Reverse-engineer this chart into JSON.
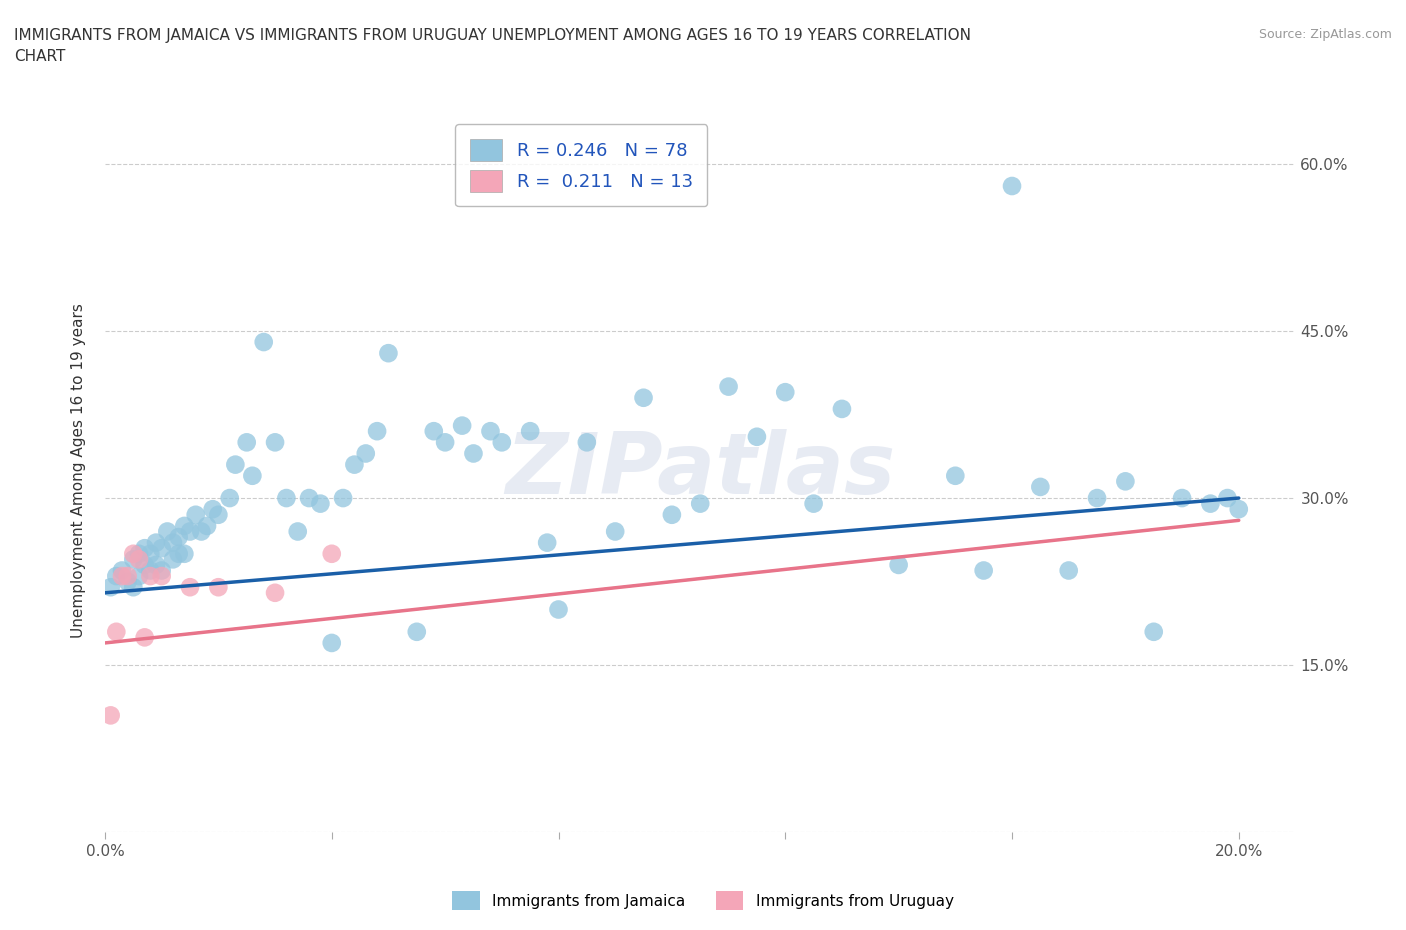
{
  "title": "IMMIGRANTS FROM JAMAICA VS IMMIGRANTS FROM URUGUAY UNEMPLOYMENT AMONG AGES 16 TO 19 YEARS CORRELATION\nCHART",
  "source_text": "Source: ZipAtlas.com",
  "ylabel": "Unemployment Among Ages 16 to 19 years",
  "xlim": [
    0.0,
    0.21
  ],
  "ylim": [
    0.0,
    0.65
  ],
  "xtick_positions": [
    0.0,
    0.04,
    0.08,
    0.12,
    0.16,
    0.2
  ],
  "xtick_labels": [
    "0.0%",
    "",
    "",
    "",
    "",
    "20.0%"
  ],
  "ytick_positions": [
    0.0,
    0.15,
    0.3,
    0.45,
    0.6
  ],
  "ytick_labels": [
    "",
    "15.0%",
    "30.0%",
    "45.0%",
    "60.0%"
  ],
  "jamaica_color": "#92c5de",
  "uruguay_color": "#f4a6b8",
  "jamaica_line_color": "#1a5fa8",
  "uruguay_line_color": "#e8748a",
  "legend_jamaica": "R = 0.246   N = 78",
  "legend_uruguay": "R =  0.211   N = 13",
  "watermark": "ZIPatlas",
  "background_color": "#ffffff",
  "grid_color": "#cccccc",
  "jamaica_x": [
    0.001,
    0.002,
    0.003,
    0.004,
    0.005,
    0.005,
    0.006,
    0.006,
    0.007,
    0.007,
    0.008,
    0.008,
    0.009,
    0.009,
    0.01,
    0.01,
    0.011,
    0.012,
    0.012,
    0.013,
    0.013,
    0.014,
    0.014,
    0.015,
    0.016,
    0.017,
    0.018,
    0.019,
    0.02,
    0.022,
    0.023,
    0.025,
    0.026,
    0.028,
    0.03,
    0.032,
    0.034,
    0.036,
    0.038,
    0.04,
    0.042,
    0.044,
    0.046,
    0.048,
    0.05,
    0.055,
    0.058,
    0.06,
    0.063,
    0.065,
    0.068,
    0.07,
    0.075,
    0.078,
    0.08,
    0.085,
    0.09,
    0.095,
    0.1,
    0.105,
    0.11,
    0.115,
    0.12,
    0.125,
    0.13,
    0.14,
    0.15,
    0.155,
    0.16,
    0.165,
    0.17,
    0.175,
    0.18,
    0.185,
    0.19,
    0.195,
    0.198,
    0.2
  ],
  "jamaica_y": [
    0.22,
    0.23,
    0.235,
    0.225,
    0.245,
    0.22,
    0.25,
    0.23,
    0.24,
    0.255,
    0.235,
    0.25,
    0.24,
    0.26,
    0.255,
    0.235,
    0.27,
    0.26,
    0.245,
    0.265,
    0.25,
    0.275,
    0.25,
    0.27,
    0.285,
    0.27,
    0.275,
    0.29,
    0.285,
    0.3,
    0.33,
    0.35,
    0.32,
    0.44,
    0.35,
    0.3,
    0.27,
    0.3,
    0.295,
    0.17,
    0.3,
    0.33,
    0.34,
    0.36,
    0.43,
    0.18,
    0.36,
    0.35,
    0.365,
    0.34,
    0.36,
    0.35,
    0.36,
    0.26,
    0.2,
    0.35,
    0.27,
    0.39,
    0.285,
    0.295,
    0.4,
    0.355,
    0.395,
    0.295,
    0.38,
    0.24,
    0.32,
    0.235,
    0.58,
    0.31,
    0.235,
    0.3,
    0.315,
    0.18,
    0.3,
    0.295,
    0.3,
    0.29
  ],
  "uruguay_x": [
    0.001,
    0.002,
    0.003,
    0.004,
    0.005,
    0.006,
    0.007,
    0.008,
    0.01,
    0.015,
    0.02,
    0.03,
    0.04
  ],
  "uruguay_y": [
    0.105,
    0.18,
    0.23,
    0.23,
    0.25,
    0.245,
    0.175,
    0.23,
    0.23,
    0.22,
    0.22,
    0.215,
    0.25
  ],
  "jamaica_trend_x0": 0.0,
  "jamaica_trend_y0": 0.215,
  "jamaica_trend_x1": 0.2,
  "jamaica_trend_y1": 0.3,
  "uruguay_trend_x0": 0.0,
  "uruguay_trend_y0": 0.17,
  "uruguay_trend_x1": 0.2,
  "uruguay_trend_y1": 0.28
}
